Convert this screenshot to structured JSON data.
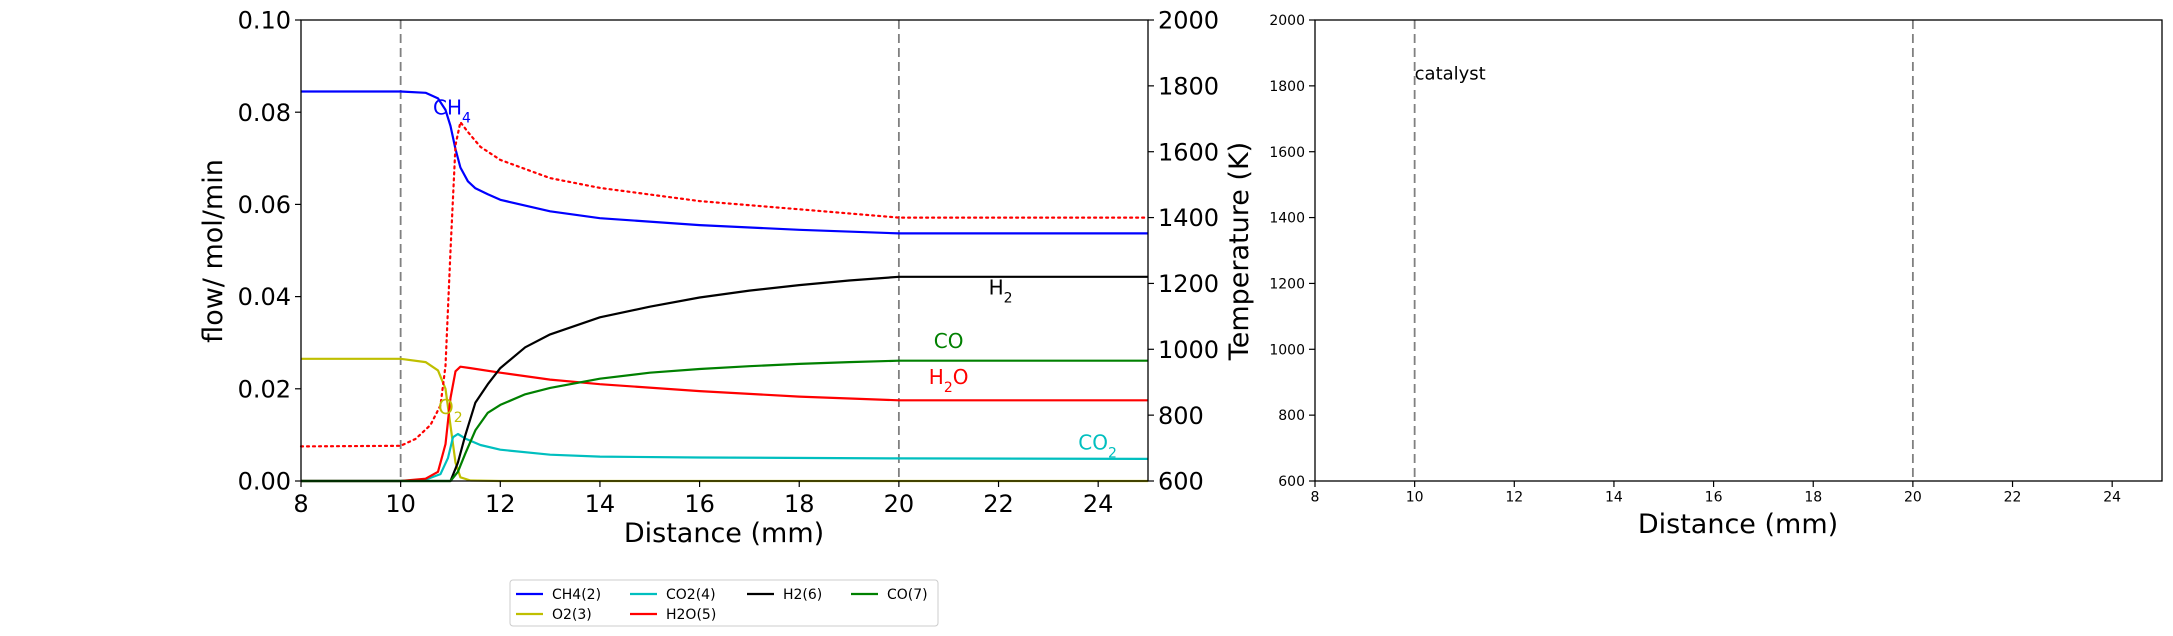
{
  "chart_data": [
    {
      "type": "line",
      "xlabel": "Distance (mm)",
      "ylabel": "flow/ mol/min",
      "y2label": "Temperature (K)",
      "xlim": [
        8,
        25
      ],
      "ylim": [
        0.0,
        0.1
      ],
      "y2lim": [
        600,
        2000
      ],
      "xticks": [
        "8",
        "10",
        "12",
        "14",
        "16",
        "18",
        "20",
        "22",
        "24"
      ],
      "yticks": [
        "0.00",
        "0.02",
        "0.04",
        "0.06",
        "0.08",
        "0.10"
      ],
      "y2ticks": [
        "600",
        "800",
        "1000",
        "1200",
        "1400",
        "1600",
        "1800",
        "2000"
      ],
      "vlines": [
        10,
        20
      ],
      "grid": false,
      "series": [
        {
          "name": "CH4(2)",
          "color": "#0000ff",
          "x": [
            8,
            10,
            10.5,
            10.75,
            10.9,
            11.0,
            11.1,
            11.2,
            11.35,
            11.5,
            11.75,
            12,
            13,
            14,
            16,
            18,
            20,
            25
          ],
          "y": [
            0.0845,
            0.0845,
            0.0842,
            0.083,
            0.0805,
            0.077,
            0.072,
            0.068,
            0.065,
            0.0635,
            0.0622,
            0.061,
            0.0585,
            0.057,
            0.0555,
            0.0545,
            0.0537,
            0.0537
          ]
        },
        {
          "name": "O2(3)",
          "color": "#bfbf00",
          "x": [
            8,
            10,
            10.5,
            10.75,
            10.9,
            11.0,
            11.1,
            11.2,
            11.4,
            12,
            25
          ],
          "y": [
            0.0265,
            0.0265,
            0.0258,
            0.024,
            0.02,
            0.012,
            0.004,
            0.0008,
            0.0001,
            0.0,
            0.0
          ]
        },
        {
          "name": "CO2(4)",
          "color": "#00bfbf",
          "x": [
            8,
            10,
            10.5,
            10.8,
            10.95,
            11.05,
            11.15,
            11.3,
            11.6,
            12,
            13,
            14,
            16,
            20,
            25
          ],
          "y": [
            0.0,
            0.0,
            0.0003,
            0.0015,
            0.005,
            0.0095,
            0.0102,
            0.0092,
            0.0078,
            0.0068,
            0.0057,
            0.0053,
            0.0051,
            0.0049,
            0.0048
          ]
        },
        {
          "name": "H2O(5)",
          "color": "#ff0000",
          "x": [
            8,
            10,
            10.5,
            10.75,
            10.9,
            11.0,
            11.1,
            11.2,
            11.4,
            12,
            13,
            14,
            16,
            18,
            20,
            25
          ],
          "y": [
            0.0,
            0.0,
            0.0005,
            0.002,
            0.008,
            0.018,
            0.0238,
            0.0248,
            0.0245,
            0.0235,
            0.022,
            0.021,
            0.0195,
            0.0183,
            0.0175,
            0.0175
          ]
        },
        {
          "name": "H2(6)",
          "color": "#000000",
          "x": [
            8,
            11.0,
            11.15,
            11.3,
            11.5,
            11.75,
            12,
            12.5,
            13,
            14,
            15,
            16,
            17,
            18,
            19,
            20,
            25
          ],
          "y": [
            0.0,
            0.0,
            0.004,
            0.01,
            0.017,
            0.021,
            0.0245,
            0.029,
            0.0318,
            0.0355,
            0.0378,
            0.0398,
            0.0413,
            0.0425,
            0.0435,
            0.0443,
            0.0443
          ]
        },
        {
          "name": "CO(7)",
          "color": "#008000",
          "x": [
            8,
            11.0,
            11.15,
            11.3,
            11.5,
            11.75,
            12,
            12.5,
            13,
            14,
            15,
            16,
            17,
            18,
            19,
            20,
            25
          ],
          "y": [
            0.0,
            0.0,
            0.002,
            0.006,
            0.011,
            0.0148,
            0.0165,
            0.0188,
            0.0202,
            0.0222,
            0.0235,
            0.0243,
            0.0249,
            0.0254,
            0.0258,
            0.0261,
            0.0261
          ]
        },
        {
          "name": "",
          "axis": "y2",
          "style": "dotted",
          "color": "#ff0000",
          "x": [
            8,
            10,
            10.3,
            10.6,
            10.8,
            10.9,
            11.0,
            11.1,
            11.2,
            11.35,
            11.6,
            12,
            13,
            14,
            16,
            18,
            20,
            25
          ],
          "y": [
            705,
            707,
            728,
            770,
            830,
            950,
            1300,
            1620,
            1690,
            1660,
            1615,
            1575,
            1520,
            1490,
            1450,
            1425,
            1400,
            1400
          ]
        }
      ],
      "annotations": [
        {
          "text": "CH₄",
          "x": 10.65,
          "y": 0.0795,
          "color": "#0000ff"
        },
        {
          "text": "H₂",
          "x": 21.8,
          "y": 0.0405,
          "color": "#000000"
        },
        {
          "text": "CO",
          "x": 20.7,
          "y": 0.0288,
          "color": "#008000"
        },
        {
          "text": "H₂O",
          "x": 20.6,
          "y": 0.021,
          "color": "#ff0000"
        },
        {
          "text": "O₂",
          "x": 10.75,
          "y": 0.0145,
          "color": "#bfbf00"
        },
        {
          "text": "CO₂",
          "x": 23.6,
          "y": 0.0068,
          "color": "#00bfbf"
        }
      ],
      "legend": {
        "placement": "below",
        "columns": 4,
        "entries": [
          "CH4(2)",
          "CO2(4)",
          "H2(6)",
          "CO(7)",
          "O2(3)",
          "H2O(5)"
        ]
      }
    },
    {
      "type": "line",
      "xlabel": "Distance (mm)",
      "ylabel": "",
      "xlim": [
        8,
        25
      ],
      "ylim": [
        600,
        2000
      ],
      "xticks": [
        "8",
        "10",
        "12",
        "14",
        "16",
        "18",
        "20",
        "22",
        "24"
      ],
      "yticks": [
        "600",
        "800",
        "1000",
        "1200",
        "1400",
        "1600",
        "1800",
        "2000"
      ],
      "vlines": [
        10,
        20
      ],
      "grid": false,
      "series": [],
      "annotations": [
        {
          "text": "catalyst",
          "x": 10.0,
          "y": 1820,
          "color": "#000000"
        }
      ]
    }
  ]
}
